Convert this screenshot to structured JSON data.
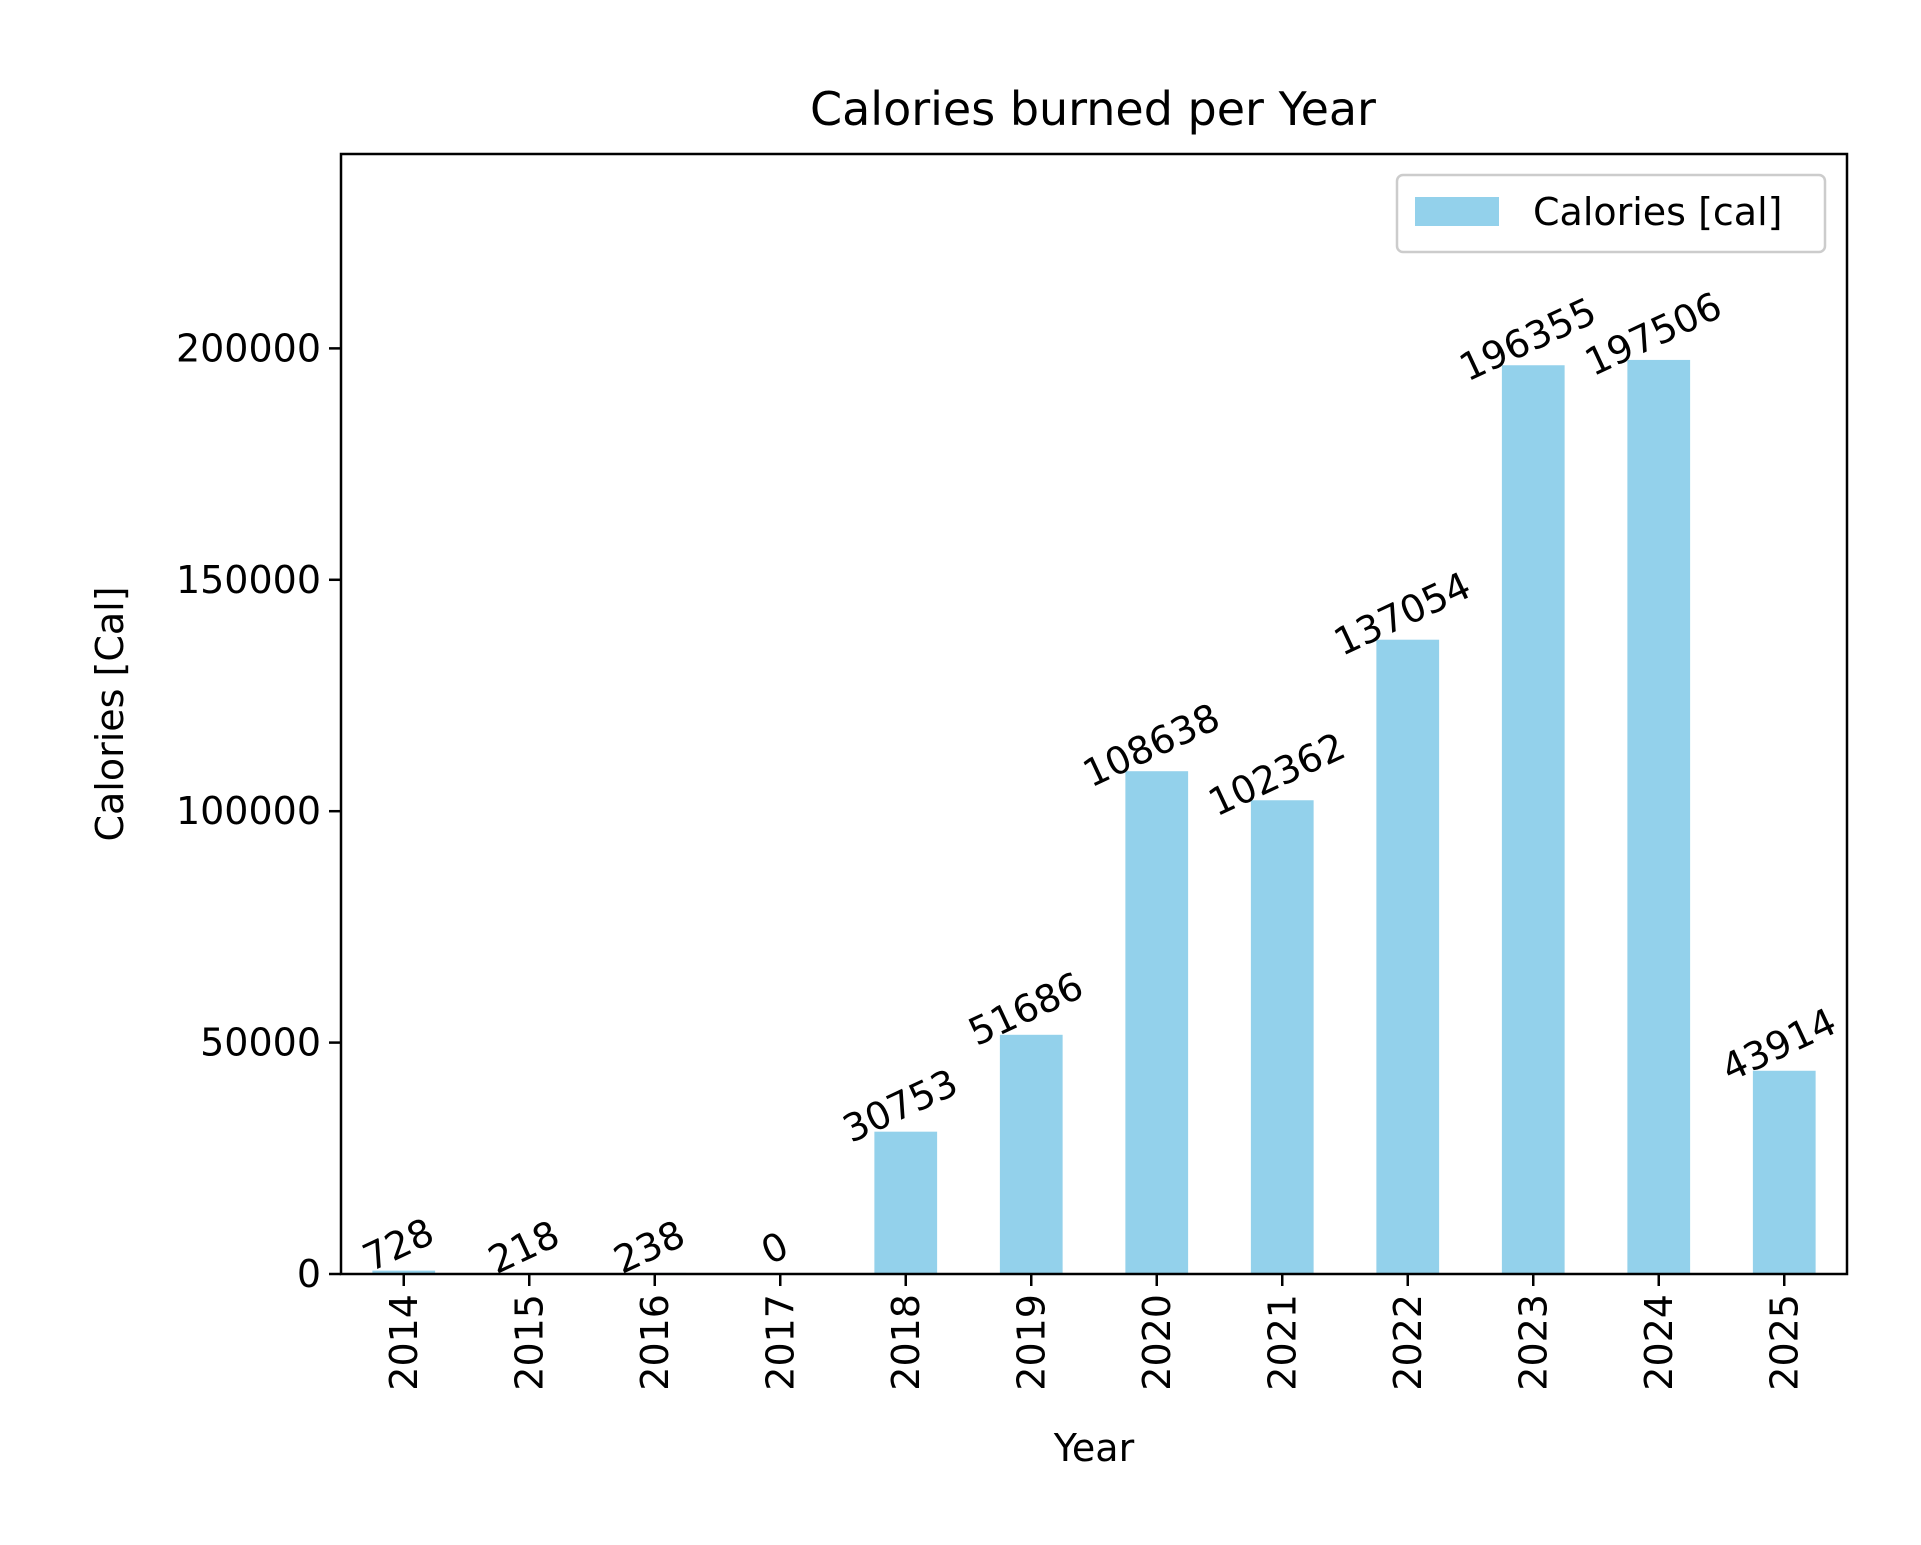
{
  "chart_data": {
    "type": "bar",
    "title": "Calories burned per Year",
    "xlabel": "Year",
    "ylabel": "Calories [Cal]",
    "categories": [
      "2014",
      "2015",
      "2016",
      "2017",
      "2018",
      "2019",
      "2020",
      "2021",
      "2022",
      "2023",
      "2024",
      "2025"
    ],
    "series": [
      {
        "name": "Calories [cal]",
        "color": "#93d1eb",
        "values": [
          728,
          218,
          238,
          0,
          30753,
          51686,
          108638,
          102362,
          137054,
          196355,
          197506,
          43914
        ]
      }
    ],
    "ylim": [
      0,
      242000
    ],
    "yticks": [
      0,
      50000,
      100000,
      150000,
      200000
    ],
    "ytick_labels": [
      "0",
      "50000",
      "100000",
      "150000",
      "200000"
    ],
    "data_labels": [
      "728",
      "218",
      "238",
      "0",
      "30753",
      "51686",
      "108638",
      "102362",
      "137054",
      "196355",
      "197506",
      "43914"
    ],
    "legend_position": "top-right",
    "grid": false
  }
}
